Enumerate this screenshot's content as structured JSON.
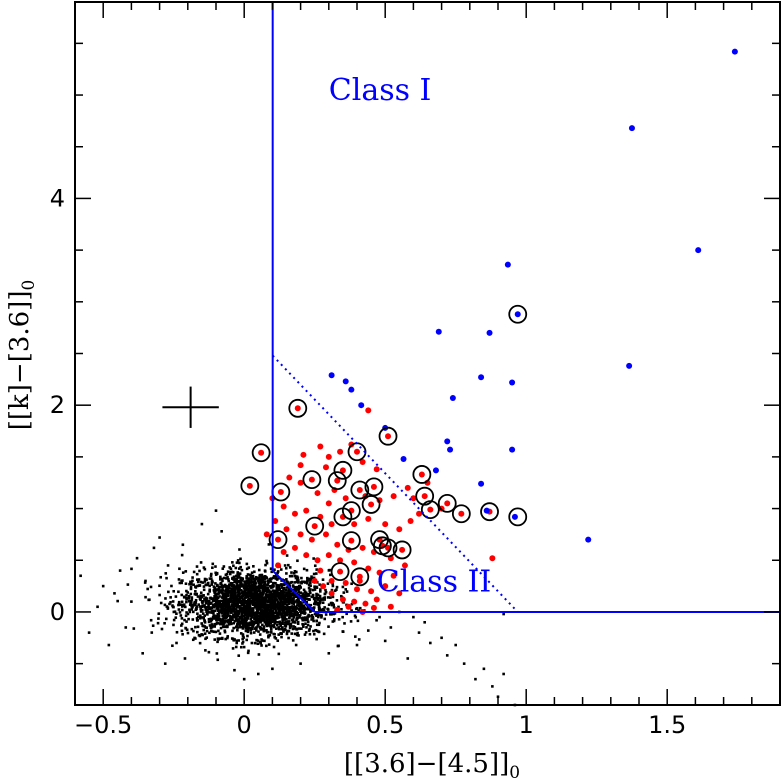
{
  "chart_data": {
    "type": "scatter",
    "title": "",
    "xlabel_main": "[[3.6]−[4.5]]",
    "xlabel_sub": "0",
    "ylabel_main": "[[k]−[3.6]]",
    "ylabel_sub": "0",
    "xlim": [
      -0.6,
      1.9
    ],
    "ylim": [
      -0.9,
      5.9
    ],
    "x_ticks": [
      {
        "value": -0.5,
        "label": "−0.5"
      },
      {
        "value": 0,
        "label": "0"
      },
      {
        "value": 0.5,
        "label": "0.5"
      },
      {
        "value": 1,
        "label": "1"
      },
      {
        "value": 1.5,
        "label": "1.5"
      }
    ],
    "y_ticks": [
      {
        "value": 0,
        "label": "0"
      },
      {
        "value": 2,
        "label": "2"
      },
      {
        "value": 4,
        "label": "4"
      }
    ],
    "x_minor_step": 0.1,
    "y_minor_step": 0.5,
    "annotations": [
      {
        "text": "Class I",
        "x": 0.3,
        "y": 4.95
      },
      {
        "text": "Class II",
        "x": 0.47,
        "y": 0.2
      }
    ],
    "boundaries": {
      "color": "#0000ff",
      "solid": [
        [
          [
            0.101,
            5.9
          ],
          [
            0.101,
            0.4
          ]
        ],
        [
          [
            0.101,
            0.4
          ],
          [
            0.25,
            0.0
          ]
        ],
        [
          [
            0.25,
            0.0
          ],
          [
            1.9,
            0.0
          ]
        ]
      ],
      "dotted": [
        [
          [
            0.101,
            2.48
          ],
          [
            0.97,
            0.0
          ]
        ]
      ]
    },
    "error_bar": {
      "x": -0.19,
      "y": 1.98,
      "xerr": 0.1,
      "yerr": 0.2
    },
    "series": [
      {
        "kind": "class-I",
        "color": "#0000ff",
        "points": [
          [
            1.74,
            5.42
          ],
          [
            1.375,
            4.68
          ],
          [
            1.61,
            3.5
          ],
          [
            0.935,
            3.36
          ],
          [
            0.97,
            2.88
          ],
          [
            0.69,
            2.71
          ],
          [
            0.87,
            2.7
          ],
          [
            1.365,
            2.38
          ],
          [
            0.31,
            2.29
          ],
          [
            0.36,
            2.23
          ],
          [
            0.84,
            2.27
          ],
          [
            0.38,
            2.15
          ],
          [
            0.95,
            2.22
          ],
          [
            0.74,
            2.07
          ],
          [
            0.415,
            2.0
          ],
          [
            0.5,
            1.78
          ],
          [
            0.72,
            1.65
          ],
          [
            0.73,
            1.57
          ],
          [
            0.95,
            1.57
          ],
          [
            0.565,
            1.48
          ],
          [
            0.68,
            1.37
          ],
          [
            0.84,
            1.24
          ],
          [
            0.86,
            0.98
          ],
          [
            0.96,
            0.92
          ],
          [
            1.22,
            0.7
          ]
        ]
      },
      {
        "kind": "class-II",
        "color": "#ff0000",
        "points": [
          [
            0.06,
            1.54
          ],
          [
            0.19,
            1.97
          ],
          [
            0.02,
            1.22
          ],
          [
            0.13,
            1.16
          ],
          [
            0.24,
            1.28
          ],
          [
            0.33,
            1.27
          ],
          [
            0.35,
            1.37
          ],
          [
            0.4,
            1.55
          ],
          [
            0.51,
            1.7
          ],
          [
            0.38,
            0.98
          ],
          [
            0.35,
            0.92
          ],
          [
            0.41,
            1.18
          ],
          [
            0.46,
            1.21
          ],
          [
            0.45,
            1.04
          ],
          [
            0.63,
            1.33
          ],
          [
            0.64,
            1.12
          ],
          [
            0.66,
            0.99
          ],
          [
            0.72,
            1.05
          ],
          [
            0.77,
            0.95
          ],
          [
            0.87,
            0.97
          ],
          [
            0.25,
            0.83
          ],
          [
            0.12,
            0.7
          ],
          [
            0.38,
            0.69
          ],
          [
            0.48,
            0.7
          ],
          [
            0.49,
            0.64
          ],
          [
            0.51,
            0.62
          ],
          [
            0.56,
            0.6
          ],
          [
            0.34,
            0.39
          ],
          [
            0.41,
            0.34
          ],
          [
            0.21,
            1.52
          ],
          [
            0.2,
            1.42
          ],
          [
            0.27,
            1.6
          ],
          [
            0.3,
            1.5
          ],
          [
            0.29,
            1.4
          ],
          [
            0.34,
            1.55
          ],
          [
            0.38,
            1.62
          ],
          [
            0.44,
            1.95
          ],
          [
            0.42,
            1.45
          ],
          [
            0.47,
            1.38
          ],
          [
            0.16,
            1.3
          ],
          [
            0.2,
            1.25
          ],
          [
            0.26,
            1.15
          ],
          [
            0.3,
            1.05
          ],
          [
            0.32,
            1.18
          ],
          [
            0.36,
            1.1
          ],
          [
            0.43,
            1.12
          ],
          [
            0.48,
            1.08
          ],
          [
            0.53,
            1.12
          ],
          [
            0.58,
            1.2
          ],
          [
            0.6,
            1.1
          ],
          [
            0.14,
            1.02
          ],
          [
            0.18,
            0.95
          ],
          [
            0.22,
            0.98
          ],
          [
            0.27,
            0.92
          ],
          [
            0.31,
            0.85
          ],
          [
            0.39,
            0.85
          ],
          [
            0.44,
            0.9
          ],
          [
            0.5,
            0.85
          ],
          [
            0.55,
            0.8
          ],
          [
            0.59,
            0.88
          ],
          [
            0.11,
            0.88
          ],
          [
            0.15,
            0.8
          ],
          [
            0.2,
            0.75
          ],
          [
            0.24,
            0.7
          ],
          [
            0.29,
            0.75
          ],
          [
            0.33,
            0.65
          ],
          [
            0.37,
            0.6
          ],
          [
            0.42,
            0.62
          ],
          [
            0.46,
            0.58
          ],
          [
            0.52,
            0.52
          ],
          [
            0.57,
            0.45
          ],
          [
            0.14,
            0.58
          ],
          [
            0.18,
            0.62
          ],
          [
            0.22,
            0.55
          ],
          [
            0.26,
            0.5
          ],
          [
            0.3,
            0.55
          ],
          [
            0.34,
            0.5
          ],
          [
            0.39,
            0.48
          ],
          [
            0.44,
            0.42
          ],
          [
            0.48,
            0.38
          ],
          [
            0.53,
            0.35
          ],
          [
            0.27,
            0.4
          ],
          [
            0.31,
            0.3
          ],
          [
            0.36,
            0.28
          ],
          [
            0.4,
            0.22
          ],
          [
            0.45,
            0.2
          ],
          [
            0.5,
            0.25
          ],
          [
            0.55,
            0.18
          ],
          [
            0.31,
            0.18
          ],
          [
            0.35,
            0.12
          ],
          [
            0.39,
            0.1
          ],
          [
            0.43,
            0.08
          ],
          [
            0.47,
            0.12
          ],
          [
            0.41,
            0.3
          ],
          [
            0.28,
            0.25
          ],
          [
            0.25,
            0.3
          ],
          [
            0.62,
            0.95
          ],
          [
            0.7,
            1.0
          ],
          [
            0.65,
            1.25
          ],
          [
            0.88,
            0.52
          ],
          [
            0.08,
            0.75
          ],
          [
            0.1,
            1.1
          ],
          [
            0.12,
            0.45
          ],
          [
            0.37,
            0.05
          ],
          [
            0.33,
            0.02
          ],
          [
            0.42,
            0.0
          ],
          [
            0.46,
            0.04
          ],
          [
            0.52,
            0.05
          ]
        ]
      },
      {
        "kind": "circled",
        "color": "#000000",
        "points": [
          [
            0.06,
            1.54
          ],
          [
            0.19,
            1.97
          ],
          [
            0.02,
            1.22
          ],
          [
            0.13,
            1.16
          ],
          [
            0.24,
            1.28
          ],
          [
            0.33,
            1.27
          ],
          [
            0.35,
            1.37
          ],
          [
            0.4,
            1.55
          ],
          [
            0.51,
            1.7
          ],
          [
            0.38,
            0.98
          ],
          [
            0.35,
            0.92
          ],
          [
            0.41,
            1.18
          ],
          [
            0.46,
            1.21
          ],
          [
            0.45,
            1.04
          ],
          [
            0.63,
            1.33
          ],
          [
            0.64,
            1.12
          ],
          [
            0.66,
            0.99
          ],
          [
            0.72,
            1.05
          ],
          [
            0.77,
            0.95
          ],
          [
            0.87,
            0.97
          ],
          [
            0.25,
            0.83
          ],
          [
            0.12,
            0.7
          ],
          [
            0.38,
            0.69
          ],
          [
            0.48,
            0.7
          ],
          [
            0.49,
            0.64
          ],
          [
            0.51,
            0.62
          ],
          [
            0.56,
            0.6
          ],
          [
            0.34,
            0.39
          ],
          [
            0.41,
            0.34
          ],
          [
            0.97,
            0.92
          ],
          [
            0.97,
            2.88
          ]
        ]
      },
      {
        "kind": "field",
        "color": "#000000",
        "count": 2600,
        "center": [
          0.04,
          0.08
        ],
        "spread": [
          0.13,
          0.16
        ],
        "points": [
          [
            -0.58,
            0.35
          ],
          [
            -0.55,
            -0.2
          ],
          [
            -0.52,
            0.05
          ],
          [
            -0.5,
            0.25
          ],
          [
            -0.48,
            -0.32
          ],
          [
            -0.46,
            0.18
          ],
          [
            -0.44,
            0.4
          ],
          [
            -0.42,
            -0.15
          ],
          [
            -0.4,
            0.1
          ],
          [
            -0.38,
            0.52
          ],
          [
            -0.36,
            -0.4
          ],
          [
            -0.35,
            0.3
          ],
          [
            -0.33,
            -0.08
          ],
          [
            -0.32,
            0.62
          ],
          [
            -0.3,
            0.72
          ],
          [
            -0.28,
            -0.5
          ],
          [
            -0.27,
            0.45
          ],
          [
            -0.25,
            0.2
          ],
          [
            -0.24,
            -0.3
          ],
          [
            -0.22,
            0.55
          ],
          [
            -0.21,
            -0.45
          ],
          [
            -0.1,
            0.98
          ],
          [
            -0.08,
            0.78
          ],
          [
            -0.15,
            0.85
          ],
          [
            0.0,
            -0.65
          ],
          [
            0.05,
            -0.6
          ],
          [
            0.1,
            -0.55
          ],
          [
            0.2,
            -0.5
          ],
          [
            0.3,
            -0.4
          ],
          [
            0.4,
            -0.32
          ],
          [
            0.5,
            -0.28
          ],
          [
            0.58,
            -0.45
          ],
          [
            0.62,
            -0.2
          ],
          [
            0.66,
            -0.3
          ],
          [
            0.7,
            -0.25
          ],
          [
            0.72,
            -0.42
          ],
          [
            0.78,
            -0.5
          ],
          [
            0.82,
            -0.65
          ],
          [
            0.85,
            -0.55
          ],
          [
            0.88,
            -0.72
          ],
          [
            0.9,
            -0.82
          ],
          [
            0.92,
            -0.6
          ],
          [
            0.96,
            -0.9
          ],
          [
            0.75,
            -0.32
          ],
          [
            0.64,
            -0.1
          ],
          [
            0.6,
            -0.05
          ],
          [
            0.55,
            0.0
          ],
          [
            0.52,
            -0.15
          ],
          [
            0.48,
            -0.05
          ],
          [
            0.44,
            -0.18
          ],
          [
            0.92,
            -0.02
          ]
        ]
      }
    ]
  }
}
